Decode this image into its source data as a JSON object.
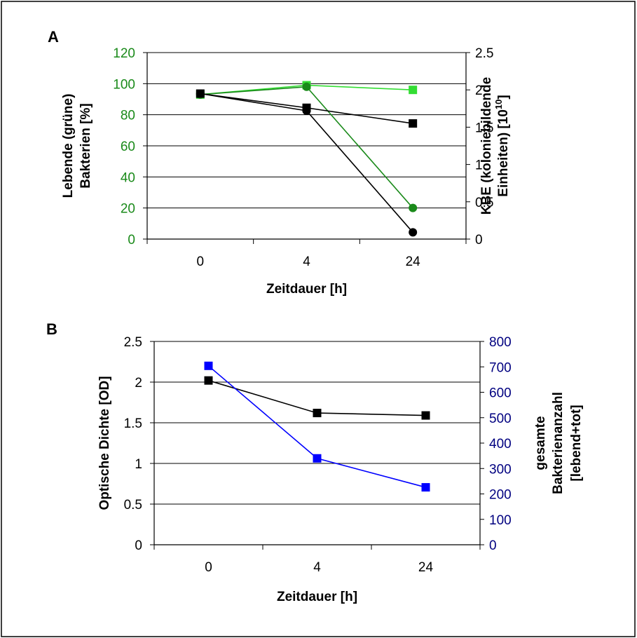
{
  "chart_data": [
    {
      "panel_label": "A",
      "type": "line",
      "categories": [
        "0",
        "4",
        "24"
      ],
      "xlabel": "Zeitdauer [h]",
      "ylabel_left_lines": [
        "Lebende (grüne)",
        "Bakterien [%]"
      ],
      "ylabel_right_lines": [
        "KBE (koloniebildende",
        "Einheiten) [10",
        "10",
        "]"
      ],
      "ylim_left": [
        0,
        120
      ],
      "yticks_left": [
        "0",
        "20",
        "40",
        "60",
        "80",
        "100",
        "120"
      ],
      "ylim_right": [
        0,
        2.5
      ],
      "yticks_right": [
        "0",
        "0.5",
        "1",
        "1.5",
        "2",
        "2.5"
      ],
      "grid": "horizontal",
      "left_tick_color": "#1a8a1a",
      "series": [
        {
          "axis": "left",
          "color": "#33dd33",
          "marker": "square",
          "values": [
            93,
            99,
            96
          ]
        },
        {
          "axis": "left",
          "color": "#1a8a1a",
          "marker": "circle",
          "values": [
            93,
            98,
            20
          ]
        },
        {
          "axis": "right",
          "color": "#000000",
          "marker": "square",
          "values": [
            1.95,
            1.76,
            1.55
          ]
        },
        {
          "axis": "right",
          "color": "#000000",
          "marker": "circle",
          "values": [
            1.95,
            1.72,
            0.09
          ]
        }
      ]
    },
    {
      "panel_label": "B",
      "type": "line",
      "categories": [
        "0",
        "4",
        "24"
      ],
      "xlabel": "Zeitdauer [h]",
      "ylabel_left_lines": [
        "Optische Dichte [OD]"
      ],
      "ylabel_right_lines": [
        "gesamte",
        "Bakterienanzahl",
        "[lebend+tot]"
      ],
      "ylim_left": [
        0,
        2.5
      ],
      "yticks_left": [
        "0",
        "0.5",
        "1",
        "1.5",
        "2",
        "2.5"
      ],
      "ylim_right": [
        0,
        800
      ],
      "yticks_right": [
        "0",
        "100",
        "200",
        "300",
        "400",
        "500",
        "600",
        "700",
        "800"
      ],
      "grid": "horizontal",
      "right_tick_color": "#000080",
      "series": [
        {
          "axis": "left",
          "color": "#000000",
          "marker": "square",
          "values": [
            2.02,
            1.62,
            1.59
          ]
        },
        {
          "axis": "right",
          "color": "#0000ff",
          "marker": "square",
          "values": [
            704,
            340,
            226
          ]
        }
      ]
    }
  ]
}
